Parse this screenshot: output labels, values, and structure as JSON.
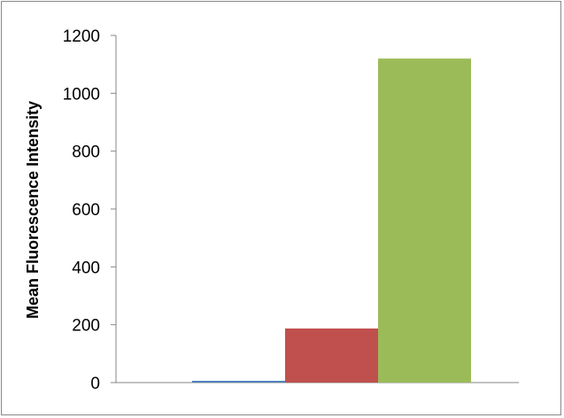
{
  "chart_data": {
    "type": "bar",
    "title": "",
    "xlabel": "",
    "ylabel": "Mean Fluorescence Intensity",
    "ylim": [
      0,
      1200
    ],
    "yticks": [
      0,
      200,
      400,
      600,
      800,
      1000,
      1200
    ],
    "grid": false,
    "legend": "none",
    "series": [
      {
        "values": [
          5
        ],
        "color": "#4F81BD"
      },
      {
        "values": [
          187
        ],
        "color": "#C0504D"
      },
      {
        "values": [
          1120
        ],
        "color": "#9BBB59"
      }
    ]
  }
}
